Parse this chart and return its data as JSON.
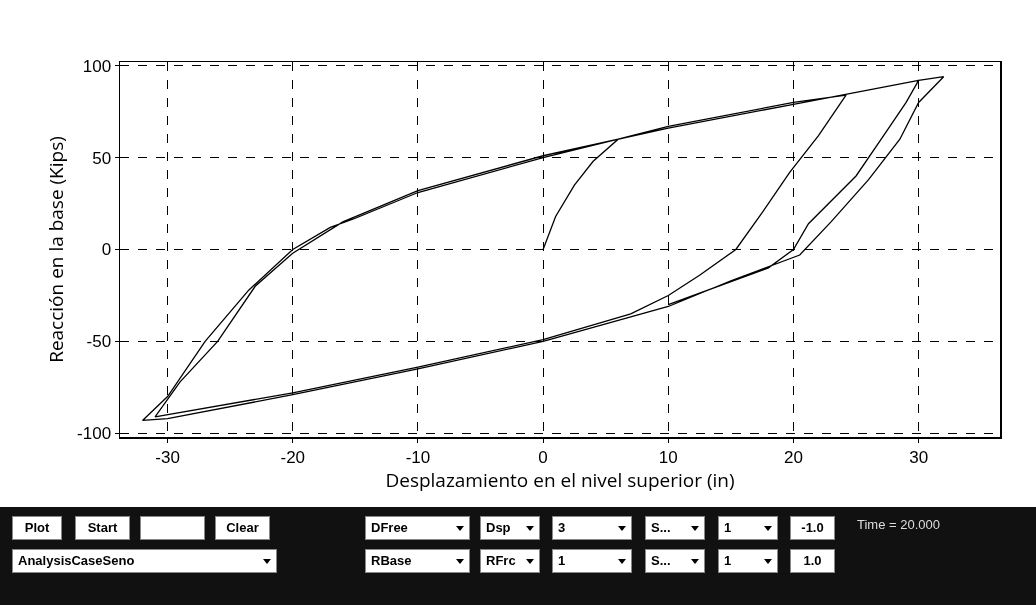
{
  "chart_data": {
    "type": "line",
    "xlabel": "Desplazamiento en el nivel superior (in)",
    "ylabel": "Reacción en la base (Kips)",
    "xlim": [
      -33.8,
      36.5
    ],
    "ylim": [
      -102,
      102
    ],
    "xticks": [
      -30,
      -20,
      -10,
      0,
      10,
      20,
      30
    ],
    "yticks": [
      -100,
      -50,
      0,
      50,
      100
    ],
    "grid": true,
    "line_style": "solid",
    "marker": "none",
    "series": [
      {
        "color": "#000000",
        "x": [
          0,
          1,
          2.5,
          4,
          6,
          10,
          20,
          30,
          32,
          30,
          28.5,
          26,
          23,
          20.5,
          15,
          10,
          0,
          -10,
          -20,
          -30,
          -32,
          -30,
          -27,
          -23.5,
          -20,
          -17,
          -15,
          -10,
          0,
          6,
          10,
          20,
          24.2,
          22,
          19.7,
          17.5,
          15.4,
          12.5,
          10,
          7,
          0,
          -10,
          -20,
          -31,
          -29,
          -26,
          -23,
          -20,
          -16,
          -10,
          0,
          10,
          20,
          30,
          29,
          27.5,
          25,
          21.2,
          20,
          18,
          10
        ],
        "values": [
          0,
          18,
          35,
          48,
          60,
          66,
          79,
          92,
          94,
          80,
          60,
          38,
          15,
          -3,
          -17,
          -31,
          -50,
          -65,
          -79,
          -92,
          -93,
          -80,
          -50,
          -22,
          0,
          12,
          17,
          31,
          50,
          60,
          67,
          80,
          84,
          62,
          42,
          20,
          0,
          -14,
          -25,
          -35,
          -49,
          -64,
          -78,
          -91,
          -72,
          -50,
          -20,
          -2,
          15,
          32,
          51,
          66,
          79,
          92,
          80,
          65,
          40,
          14,
          0,
          -10,
          -30
        ]
      }
    ],
    "annotations": [
      "Plot",
      "Start",
      "Clear",
      "AnalysisCaseSeno",
      "DFree",
      "Dsp",
      "3",
      "S...",
      "1",
      "-1.0",
      "Time = 20.000",
      "RBase",
      "RFrc",
      "1",
      "S...",
      "1",
      "1.0"
    ]
  }
}
